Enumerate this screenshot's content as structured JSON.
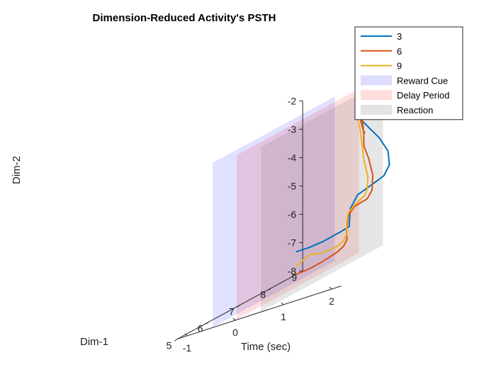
{
  "chart_data": {
    "type": "line",
    "title": "Dimension-Reduced Activity's PSTH",
    "axes": {
      "x": {
        "label": "Time (sec)",
        "ticks": [
          "-1",
          "0",
          "1",
          "2"
        ],
        "range": [
          -1.2,
          2.2
        ]
      },
      "y": {
        "label": "Dim-1",
        "ticks": [
          "5",
          "6",
          "7",
          "8",
          "9"
        ],
        "range": [
          5,
          9
        ]
      },
      "z": {
        "label": "Dim-2",
        "ticks": [
          "-8",
          "-7",
          "-6",
          "-5",
          "-4",
          "-3",
          "-2"
        ],
        "range": [
          -8,
          -2
        ]
      }
    },
    "series": [
      {
        "name": "3",
        "color": "#0072BD",
        "points": [
          [
            -1.2,
            8.8,
            -7.2
          ],
          [
            -0.8,
            8.6,
            -7.15
          ],
          [
            -0.4,
            8.4,
            -7.05
          ],
          [
            0.0,
            8.3,
            -6.9
          ],
          [
            0.35,
            8.1,
            -6.75
          ],
          [
            0.55,
            7.8,
            -6.5
          ],
          [
            0.7,
            7.6,
            -6.0
          ],
          [
            0.85,
            7.6,
            -5.6
          ],
          [
            1.05,
            7.7,
            -5.45
          ],
          [
            1.2,
            7.9,
            -5.3
          ],
          [
            1.25,
            8.0,
            -5.0
          ],
          [
            1.22,
            8.0,
            -4.5
          ],
          [
            1.1,
            7.9,
            -3.9
          ],
          [
            0.95,
            7.8,
            -3.4
          ],
          [
            0.85,
            7.7,
            -3.0
          ],
          [
            0.8,
            7.8,
            -2.7
          ],
          [
            0.9,
            7.5,
            -2.4
          ],
          [
            0.75,
            7.9,
            -2.5
          ],
          [
            0.85,
            7.6,
            -2.2
          ]
        ]
      },
      {
        "name": "6",
        "color": "#D95319",
        "points": [
          [
            -1.2,
            8.8,
            -8.0
          ],
          [
            -0.8,
            8.6,
            -7.9
          ],
          [
            -0.4,
            8.4,
            -7.75
          ],
          [
            0.0,
            8.25,
            -7.55
          ],
          [
            0.3,
            8.0,
            -7.35
          ],
          [
            0.5,
            7.8,
            -7.1
          ],
          [
            0.62,
            7.6,
            -6.7
          ],
          [
            0.72,
            7.5,
            -6.2
          ],
          [
            0.85,
            7.5,
            -5.95
          ],
          [
            1.05,
            7.6,
            -5.85
          ],
          [
            1.15,
            7.6,
            -5.6
          ],
          [
            1.1,
            7.7,
            -5.1
          ],
          [
            0.95,
            7.8,
            -4.5
          ],
          [
            0.85,
            7.8,
            -4.0
          ],
          [
            0.78,
            7.9,
            -3.5
          ],
          [
            0.75,
            7.9,
            -3.1
          ],
          [
            0.85,
            7.7,
            -3.05
          ],
          [
            0.9,
            7.7,
            -3.4
          ],
          [
            1.0,
            7.6,
            -3.5
          ]
        ]
      },
      {
        "name": "9",
        "color": "#EDB120",
        "points": [
          [
            -1.2,
            8.8,
            -7.7
          ],
          [
            -0.8,
            8.6,
            -7.4
          ],
          [
            -0.4,
            8.4,
            -7.45
          ],
          [
            0.0,
            8.25,
            -7.35
          ],
          [
            0.3,
            8.0,
            -7.15
          ],
          [
            0.5,
            7.8,
            -6.9
          ],
          [
            0.62,
            7.6,
            -6.5
          ],
          [
            0.72,
            7.5,
            -6.1
          ],
          [
            0.85,
            7.5,
            -5.9
          ],
          [
            1.0,
            7.6,
            -5.7
          ],
          [
            1.05,
            7.6,
            -5.5
          ],
          [
            1.0,
            7.7,
            -5.1
          ],
          [
            0.85,
            7.8,
            -4.5
          ],
          [
            0.75,
            7.9,
            -4.0
          ],
          [
            0.65,
            8.0,
            -3.5
          ],
          [
            0.58,
            8.0,
            -2.9
          ],
          [
            0.62,
            8.0,
            -2.75
          ],
          [
            0.72,
            7.9,
            -3.0
          ]
        ]
      }
    ],
    "planes": [
      {
        "name": "Reward Cue",
        "time": -0.5,
        "color": "#0000FF",
        "alpha": 0.12
      },
      {
        "name": "Delay Period",
        "time": 0.0,
        "color": "#FF0000",
        "alpha": 0.12
      },
      {
        "name": "Reaction",
        "time": 0.5,
        "color": "#808080",
        "alpha": 0.2
      }
    ],
    "legend_position": "top-right outside"
  }
}
